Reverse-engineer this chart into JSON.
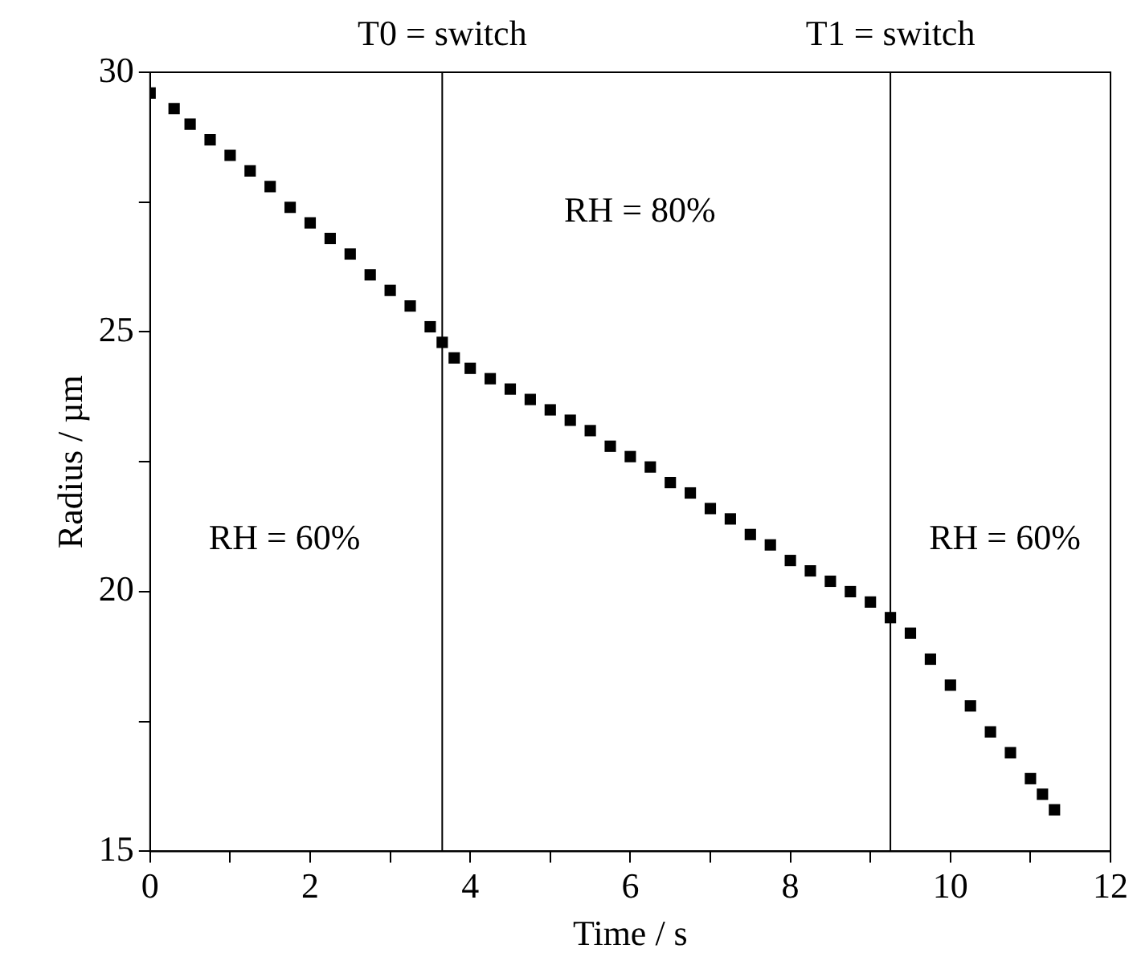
{
  "chart_data": {
    "type": "scatter",
    "xlabel": "Time / s",
    "ylabel": "Radius / µm",
    "marker": "square",
    "color": "#000000",
    "x": [
      0,
      0.3,
      0.5,
      0.75,
      1,
      1.25,
      1.5,
      1.75,
      2,
      2.25,
      2.5,
      2.75,
      3,
      3.25,
      3.5,
      3.65,
      3.8,
      4,
      4.25,
      4.5,
      4.75,
      5,
      5.25,
      5.5,
      5.75,
      6,
      6.25,
      6.5,
      6.75,
      7,
      7.25,
      7.5,
      7.75,
      8,
      8.25,
      8.5,
      8.75,
      9,
      9.25,
      9.5,
      9.75,
      10,
      10.25,
      10.5,
      10.75,
      11,
      11.15,
      11.3
    ],
    "values": [
      29.6,
      29.3,
      29.0,
      28.7,
      28.4,
      28.1,
      27.8,
      27.4,
      27.1,
      26.8,
      26.5,
      26.1,
      25.8,
      25.5,
      25.1,
      24.8,
      24.5,
      24.3,
      24.1,
      23.9,
      23.7,
      23.5,
      23.3,
      23.1,
      22.8,
      22.6,
      22.4,
      22.1,
      21.9,
      21.6,
      21.4,
      21.1,
      20.9,
      20.6,
      20.4,
      20.2,
      20.0,
      19.8,
      19.5,
      19.2,
      18.7,
      18.2,
      17.8,
      17.3,
      16.9,
      16.4,
      16.1,
      15.8
    ],
    "xlim": [
      0,
      12
    ],
    "xticks": [
      0,
      {
        "value": 1,
        "label": null
      },
      2,
      {
        "value": 3,
        "label": null
      },
      4,
      {
        "value": 5,
        "label": null
      },
      6,
      {
        "value": 7,
        "label": null
      },
      8,
      {
        "value": 9,
        "label": null
      },
      10,
      {
        "value": 11,
        "label": null
      },
      12
    ],
    "ylim": [
      15,
      30
    ],
    "yticks": [
      15,
      {
        "value": 17.5,
        "label": null
      },
      20,
      {
        "value": 22.5,
        "label": null
      },
      25,
      {
        "value": 27.5,
        "label": null
      },
      30
    ],
    "grid": false,
    "legend": false,
    "ref_lines": [
      {
        "axis": "x",
        "value": 3.65,
        "label": "T0 = switch",
        "color": "#000000"
      },
      {
        "axis": "x",
        "value": 9.25,
        "label": "T1 = switch",
        "color": "#000000"
      }
    ],
    "annotations": [
      "RH = 60%",
      "RH = 80%",
      "RH = 60%"
    ]
  }
}
